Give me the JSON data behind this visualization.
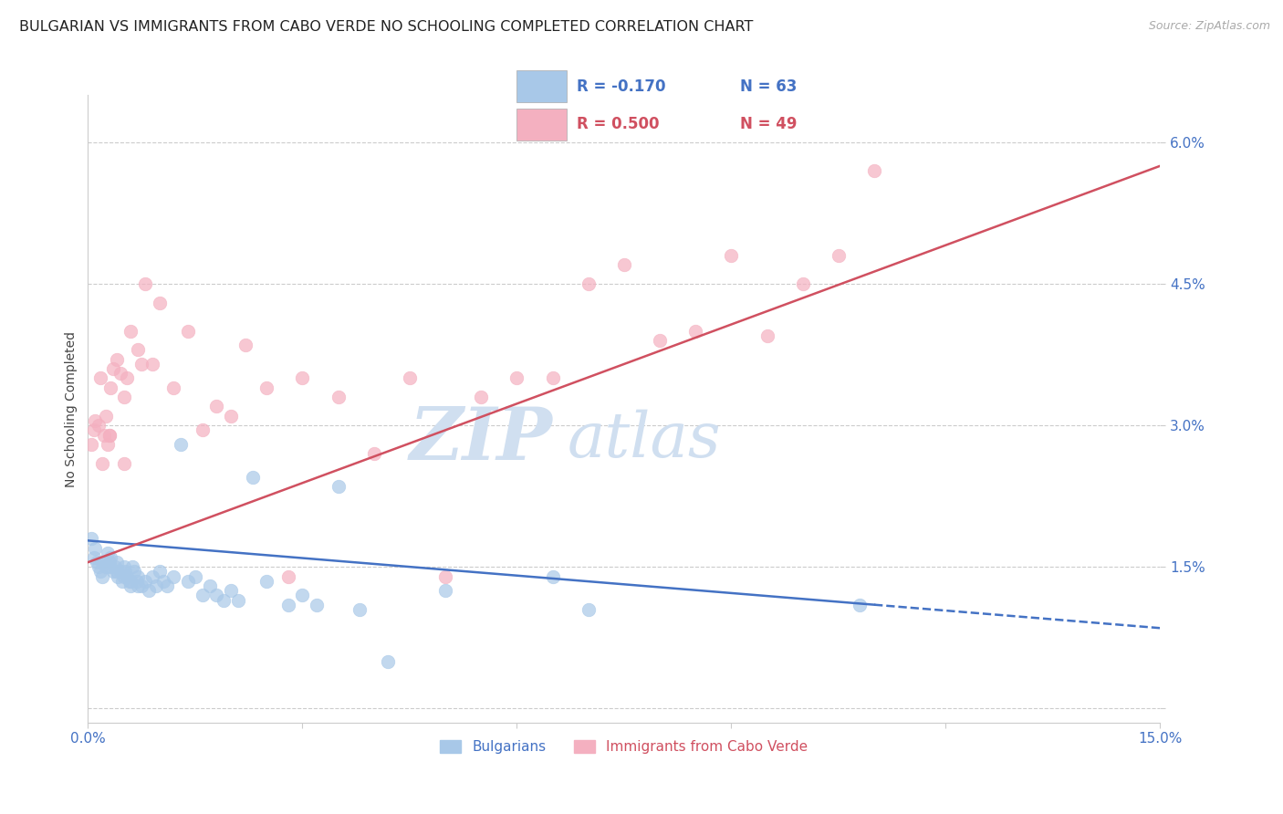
{
  "title": "BULGARIAN VS IMMIGRANTS FROM CABO VERDE NO SCHOOLING COMPLETED CORRELATION CHART",
  "source": "Source: ZipAtlas.com",
  "ylabel": "No Schooling Completed",
  "xlim": [
    0.0,
    15.0
  ],
  "ylim": [
    -0.15,
    6.5
  ],
  "yticks": [
    0.0,
    1.5,
    3.0,
    4.5,
    6.0
  ],
  "ytick_labels": [
    "",
    "1.5%",
    "3.0%",
    "4.5%",
    "6.0%"
  ],
  "xticks": [
    0.0,
    3.0,
    6.0,
    9.0,
    12.0,
    15.0
  ],
  "xtick_labels": [
    "0.0%",
    "",
    "",
    "",
    "",
    "15.0%"
  ],
  "blue_label": "Bulgarians",
  "pink_label": "Immigrants from Cabo Verde",
  "blue_r": "R = -0.170",
  "blue_n": "N = 63",
  "pink_r": "R = 0.500",
  "pink_n": "N = 49",
  "blue_color": "#a8c8e8",
  "pink_color": "#f4b0c0",
  "blue_line_color": "#4472c4",
  "pink_line_color": "#d05060",
  "watermark_zip": "ZIP",
  "watermark_atlas": "atlas",
  "watermark_color": "#d0dff0",
  "blue_x": [
    0.05,
    0.08,
    0.1,
    0.12,
    0.15,
    0.18,
    0.2,
    0.22,
    0.25,
    0.28,
    0.3,
    0.32,
    0.35,
    0.38,
    0.4,
    0.42,
    0.45,
    0.48,
    0.5,
    0.52,
    0.55,
    0.58,
    0.6,
    0.62,
    0.65,
    0.68,
    0.7,
    0.75,
    0.8,
    0.85,
    0.9,
    0.95,
    1.0,
    1.05,
    1.1,
    1.2,
    1.3,
    1.4,
    1.5,
    1.6,
    1.7,
    1.8,
    1.9,
    2.0,
    2.1,
    2.3,
    2.5,
    2.8,
    3.0,
    3.2,
    3.5,
    3.8,
    4.2,
    5.0,
    6.5,
    7.0,
    10.8,
    0.2,
    0.3,
    0.4,
    0.5,
    0.6,
    0.7
  ],
  "blue_y": [
    1.8,
    1.6,
    1.7,
    1.55,
    1.5,
    1.45,
    1.4,
    1.55,
    1.5,
    1.65,
    1.55,
    1.6,
    1.45,
    1.5,
    1.55,
    1.4,
    1.45,
    1.35,
    1.5,
    1.45,
    1.4,
    1.35,
    1.3,
    1.5,
    1.45,
    1.35,
    1.4,
    1.3,
    1.35,
    1.25,
    1.4,
    1.3,
    1.45,
    1.35,
    1.3,
    1.4,
    2.8,
    1.35,
    1.4,
    1.2,
    1.3,
    1.2,
    1.15,
    1.25,
    1.15,
    2.45,
    1.35,
    1.1,
    1.2,
    1.1,
    2.35,
    1.05,
    0.5,
    1.25,
    1.4,
    1.05,
    1.1,
    1.55,
    1.5,
    1.45,
    1.4,
    1.35,
    1.3
  ],
  "pink_x": [
    0.05,
    0.08,
    0.1,
    0.15,
    0.18,
    0.2,
    0.22,
    0.25,
    0.28,
    0.3,
    0.32,
    0.35,
    0.4,
    0.45,
    0.5,
    0.55,
    0.6,
    0.7,
    0.75,
    0.8,
    0.9,
    1.0,
    1.2,
    1.4,
    1.6,
    1.8,
    2.0,
    2.2,
    2.5,
    2.8,
    3.0,
    3.5,
    4.0,
    4.5,
    5.0,
    5.5,
    6.0,
    6.5,
    7.0,
    7.5,
    8.0,
    8.5,
    9.0,
    9.5,
    10.0,
    10.5,
    11.0,
    0.3,
    0.5
  ],
  "pink_y": [
    2.8,
    2.95,
    3.05,
    3.0,
    3.5,
    2.6,
    2.9,
    3.1,
    2.8,
    2.9,
    3.4,
    3.6,
    3.7,
    3.55,
    3.3,
    3.5,
    4.0,
    3.8,
    3.65,
    4.5,
    3.65,
    4.3,
    3.4,
    4.0,
    2.95,
    3.2,
    3.1,
    3.85,
    3.4,
    1.4,
    3.5,
    3.3,
    2.7,
    3.5,
    1.4,
    3.3,
    3.5,
    3.5,
    4.5,
    4.7,
    3.9,
    4.0,
    4.8,
    3.95,
    4.5,
    4.8,
    5.7,
    2.9,
    2.6
  ],
  "blue_line_y0": 1.78,
  "blue_line_y1": 1.2,
  "blue_line_x_solid_end": 11.0,
  "blue_line_y_solid_end": 1.1,
  "pink_line_y0": 1.55,
  "pink_line_y1": 5.75,
  "background_color": "#ffffff",
  "grid_color": "#cccccc",
  "title_color": "#222222",
  "axis_label_color": "#444444",
  "tick_color": "#4472c4",
  "title_fontsize": 11.5,
  "label_fontsize": 10,
  "tick_fontsize": 11,
  "legend_fontsize": 12,
  "watermark_fontsize_zip": 58,
  "watermark_fontsize_atlas": 50
}
